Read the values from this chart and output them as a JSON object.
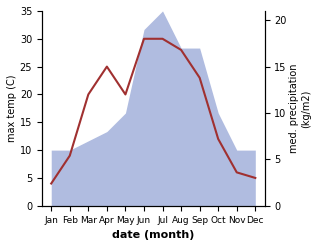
{
  "months": [
    "Jan",
    "Feb",
    "Mar",
    "Apr",
    "May",
    "Jun",
    "Jul",
    "Aug",
    "Sep",
    "Oct",
    "Nov",
    "Dec"
  ],
  "temperature": [
    4,
    9,
    20,
    25,
    20,
    30,
    30,
    28,
    23,
    12,
    6,
    5
  ],
  "precipitation_right": [
    6,
    6,
    7,
    8,
    10,
    19,
    21,
    17,
    17,
    10,
    6,
    6
  ],
  "temp_color": "#a03030",
  "precip_color": "#b0bce0",
  "xlabel": "date (month)",
  "ylabel_left": "max temp (C)",
  "ylabel_right": "med. precipitation\n(kg/m2)",
  "ylim_left": [
    0,
    35
  ],
  "ylim_right": [
    0,
    21
  ],
  "yticks_left": [
    0,
    5,
    10,
    15,
    20,
    25,
    30,
    35
  ],
  "yticks_right": [
    0,
    5,
    10,
    15,
    20
  ],
  "bg_color": "#ffffff"
}
